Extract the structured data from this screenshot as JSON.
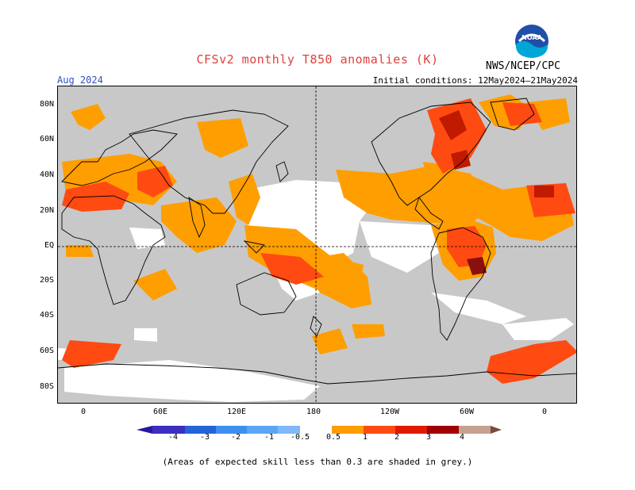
{
  "header": {
    "title": "CFSv2 monthly T850 anomalies (K)",
    "valid_month": "Aug 2024",
    "initial_conditions": "Initial conditions: 12May2024–21May2024",
    "organization": "NWS/NCEP/CPC",
    "logo_text": "NOAA"
  },
  "map": {
    "lat_labels": [
      "80N",
      "60N",
      "40N",
      "20N",
      "EQ",
      "20S",
      "40S",
      "60S",
      "80S"
    ],
    "lon_labels": [
      "0",
      "60E",
      "120E",
      "180",
      "120W",
      "60W",
      "0"
    ],
    "grey_meaning": "low skill",
    "colors": {
      "grey": "#c8c8c8",
      "neutral": "#ffffff",
      "a0_5_1": "#ff9e00",
      "a1_2": "#ff4a12",
      "a2_3": "#dd2200",
      "a3_4": "#a50000",
      "n0_5_1": "#7fb4f0",
      "n1_2": "#3c8ce8",
      "n2_3": "#2060d0",
      "n3_4": "#3020b0"
    }
  },
  "colorbar": {
    "labels": [
      "-4",
      "-3",
      "-2",
      "-1",
      "-0.5",
      "0.5",
      "1",
      "2",
      "3",
      "4"
    ],
    "colors": [
      "#2818a0",
      "#3b2ec0",
      "#2464d8",
      "#3d8ff0",
      "#80b8f8",
      "#ffffff",
      "#ff9e00",
      "#ff4a12",
      "#e01a00",
      "#a00000",
      "#c8a090",
      "#7a4a40"
    ]
  },
  "footnote": "(Areas of expected skill less than 0.3 are shaded in grey.)"
}
